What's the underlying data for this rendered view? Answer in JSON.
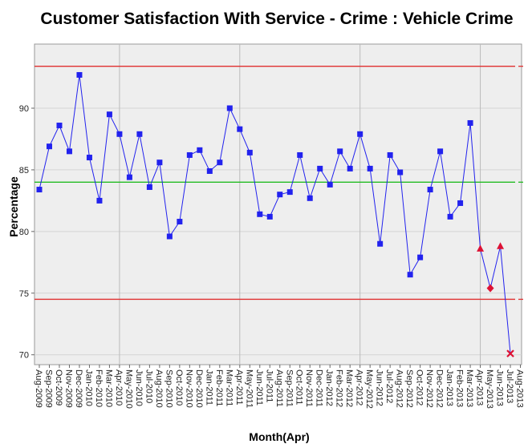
{
  "chart_data": {
    "type": "line",
    "title": "Customer Satisfaction With Service - Crime : Vehicle Crime",
    "x_label": "Month(Apr)",
    "y_label": "Percentage",
    "categories": [
      "Aug-2009",
      "Sep-2009",
      "Oct-2009",
      "Nov-2009",
      "Dec-2009",
      "Jan-2010",
      "Feb-2010",
      "Mar-2010",
      "Apr-2010",
      "May-2010",
      "Jun-2010",
      "Jul-2010",
      "Aug-2010",
      "Sep-2010",
      "Oct-2010",
      "Nov-2010",
      "Dec-2010",
      "Jan-2011",
      "Feb-2011",
      "Mar-2011",
      "Apr-2011",
      "May-2011",
      "Jun-2011",
      "Jul-2011",
      "Aug-2011",
      "Sep-2011",
      "Oct-2011",
      "Nov-2011",
      "Dec-2011",
      "Jan-2012",
      "Feb-2012",
      "Mar-2012",
      "Apr-2012",
      "May-2012",
      "Jun-2012",
      "Jul-2012",
      "Aug-2012",
      "Sep-2012",
      "Oct-2012",
      "Nov-2012",
      "Dec-2012",
      "Jan-2013",
      "Feb-2013",
      "Mar-2013",
      "Apr-2013",
      "May-2013",
      "Jun-2013",
      "Jul-2013",
      "Aug-2013"
    ],
    "series": [
      {
        "color": "#2222ee",
        "values": [
          83.4,
          86.9,
          88.6,
          86.5,
          92.7,
          86.0,
          82.5,
          89.5,
          87.9,
          84.4,
          87.9,
          83.6,
          85.6,
          79.6,
          80.8,
          86.2,
          86.6,
          84.9,
          85.6,
          90.0,
          88.3,
          86.4,
          81.4,
          81.2,
          83.0,
          83.2,
          86.2,
          82.7,
          85.1,
          83.8,
          86.5,
          85.1,
          87.9,
          85.1,
          79.0,
          86.2,
          84.8,
          76.5,
          77.9,
          83.4,
          86.5,
          81.2,
          82.3,
          88.8,
          78.6,
          75.4,
          78.8,
          70.1,
          null
        ],
        "markers": [
          "square",
          "square",
          "square",
          "square",
          "square",
          "square",
          "square",
          "square",
          "square",
          "square",
          "square",
          "square",
          "square",
          "square",
          "square",
          "square",
          "square",
          "square",
          "square",
          "square",
          "square",
          "square",
          "square",
          "square",
          "square",
          "square",
          "square",
          "square",
          "square",
          "square",
          "square",
          "square",
          "square",
          "square",
          "square",
          "square",
          "square",
          "square",
          "square",
          "square",
          "square",
          "square",
          "square",
          "square",
          "triangle",
          "diamond",
          "triangle",
          "cross",
          null
        ]
      }
    ],
    "reference_lines": [
      {
        "value": 93.4,
        "color": "#e03030"
      },
      {
        "value": 84.0,
        "color": "#22bb22"
      },
      {
        "value": 74.5,
        "color": "#e03030"
      }
    ],
    "ylim": [
      69.2,
      95.2
    ],
    "yticks": [
      70,
      75,
      80,
      85,
      90
    ],
    "grid": true
  }
}
